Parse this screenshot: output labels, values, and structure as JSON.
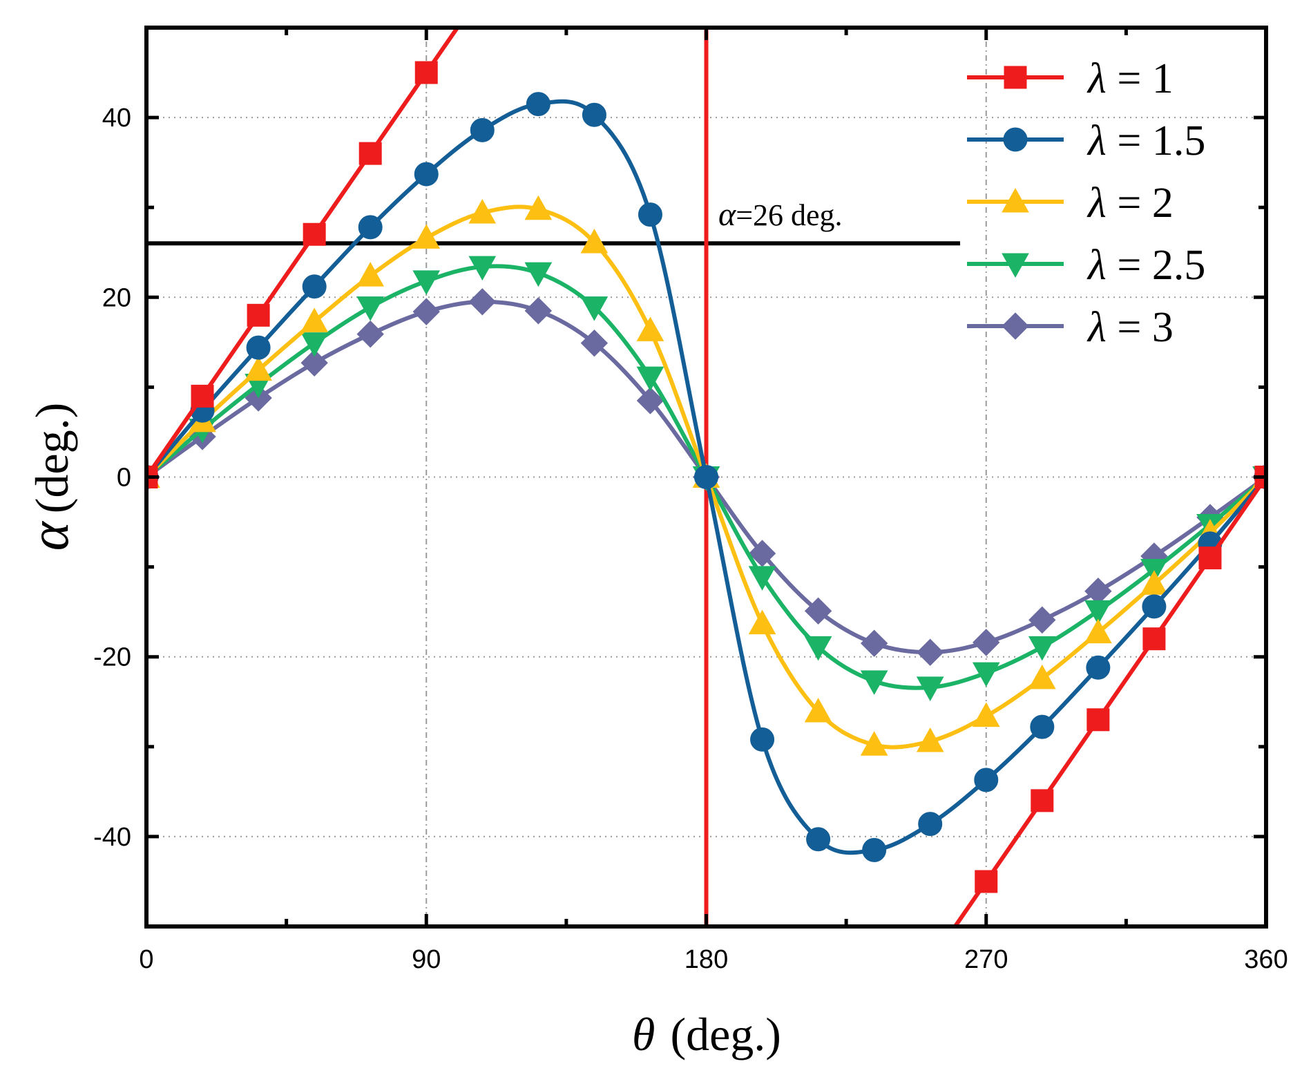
{
  "chart_data": {
    "type": "line",
    "title": "",
    "xlabel_symbol": "θ",
    "xlabel_unit": "(deg.)",
    "ylabel_symbol": "α",
    "ylabel_unit": "(deg.)",
    "xlim": [
      0,
      360
    ],
    "ylim": [
      -50,
      50
    ],
    "xticks": [
      0,
      90,
      180,
      270,
      360
    ],
    "yticks": [
      -40,
      -20,
      0,
      20,
      40
    ],
    "xtick_labels": [
      "0",
      "90",
      "180",
      "270",
      "360"
    ],
    "ytick_labels": [
      "-40",
      "-20",
      "0",
      "20",
      "40"
    ],
    "grid": "dotted",
    "legend_position": "top-right",
    "legend_symbol": "λ",
    "legend_labels": [
      "= 1",
      "= 1.5",
      "= 2",
      "= 2.5",
      "= 3"
    ],
    "reference_line": {
      "orientation": "horizontal",
      "value": 26,
      "label_symbol": "α",
      "label_text": "=26 deg."
    },
    "vertical_line": {
      "value": 180,
      "color": "#ee1c1c"
    },
    "series": [
      {
        "name": "λ = 1",
        "lambda": 1,
        "color": "#ee1c1c",
        "marker": "square",
        "x": [
          0,
          18,
          36,
          54,
          72,
          90,
          270,
          288,
          306,
          324,
          342,
          360
        ],
        "y": [
          0,
          9,
          18,
          27,
          36,
          45,
          -45,
          -36,
          -27,
          -18,
          -9,
          0
        ]
      },
      {
        "name": "λ = 1.5",
        "lambda": 1.5,
        "color": "#135e96",
        "marker": "circle",
        "x": [
          0,
          18,
          36,
          54,
          72,
          90,
          108,
          126,
          144,
          162,
          180,
          198,
          216,
          234,
          252,
          270,
          288,
          306,
          324,
          342,
          360
        ],
        "y": [
          0,
          7.4,
          14.4,
          21.2,
          27.8,
          33.7,
          38.6,
          41.5,
          40.3,
          29.2,
          0,
          -29.2,
          -40.3,
          -41.5,
          -38.6,
          -33.7,
          -27.8,
          -21.2,
          -14.4,
          -7.4,
          0
        ]
      },
      {
        "name": "λ = 2",
        "lambda": 2,
        "color": "#fcbf12",
        "marker": "triangle-up",
        "x": [
          0,
          18,
          36,
          54,
          72,
          90,
          108,
          126,
          144,
          162,
          180,
          198,
          216,
          234,
          252,
          270,
          288,
          306,
          324,
          342,
          360
        ],
        "y": [
          0,
          6.2,
          11.9,
          17.3,
          22.4,
          26.6,
          29.4,
          29.8,
          26.1,
          16.3,
          0,
          -16.3,
          -26.1,
          -29.8,
          -29.4,
          -26.6,
          -22.4,
          -17.3,
          -11.9,
          -6.2,
          0
        ]
      },
      {
        "name": "λ = 2.5",
        "lambda": 2.5,
        "color": "#1bb366",
        "marker": "triangle-down",
        "x": [
          0,
          18,
          36,
          54,
          72,
          90,
          108,
          126,
          144,
          162,
          180,
          198,
          216,
          234,
          252,
          270,
          288,
          306,
          324,
          342,
          360
        ],
        "y": [
          0,
          5.3,
          10.3,
          14.9,
          18.9,
          21.8,
          23.4,
          22.7,
          18.9,
          11.1,
          0,
          -11.1,
          -18.9,
          -22.7,
          -23.4,
          -21.8,
          -18.9,
          -14.9,
          -10.3,
          -5.3,
          0
        ]
      },
      {
        "name": "λ = 3",
        "lambda": 3,
        "color": "#6a6aa0",
        "marker": "diamond",
        "x": [
          0,
          18,
          36,
          54,
          72,
          90,
          108,
          126,
          144,
          162,
          180,
          198,
          216,
          234,
          252,
          270,
          288,
          306,
          324,
          342,
          360
        ],
        "y": [
          0,
          4.5,
          8.8,
          12.7,
          15.9,
          18.4,
          19.5,
          18.5,
          14.9,
          8.5,
          0,
          -8.5,
          -14.9,
          -18.5,
          -19.5,
          -18.4,
          -15.9,
          -12.7,
          -8.8,
          -4.5,
          0
        ]
      }
    ]
  }
}
